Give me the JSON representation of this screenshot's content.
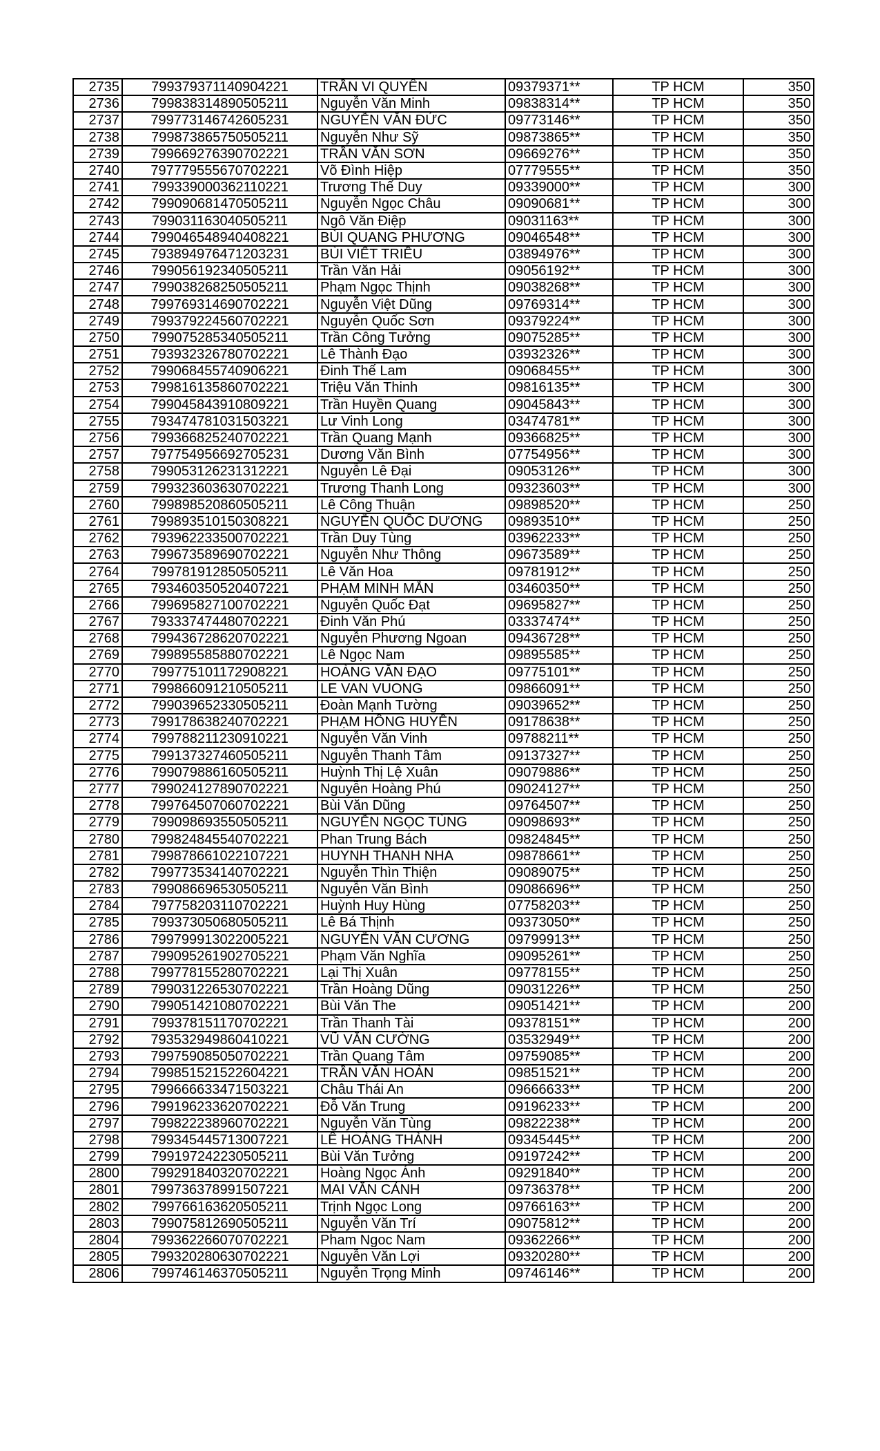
{
  "rows": [
    [
      "2735",
      "799379371140904221",
      "TRẦN VI QUYÊN",
      "09379371**",
      "TP HCM",
      "350"
    ],
    [
      "2736",
      "799838314890505211",
      "Nguyễn Văn Minh",
      "09838314**",
      "TP HCM",
      "350"
    ],
    [
      "2737",
      "799773146742605231",
      "NGUYỄN VĂN ĐỨC",
      "09773146**",
      "TP HCM",
      "350"
    ],
    [
      "2738",
      "799873865750505211",
      "Nguyễn Như Sỹ",
      "09873865**",
      "TP HCM",
      "350"
    ],
    [
      "2739",
      "799669276390702221",
      "TRẦN VĂN SƠN",
      "09669276**",
      "TP HCM",
      "350"
    ],
    [
      "2740",
      "797779555670702221",
      "Võ Đình Hiệp",
      "07779555**",
      "TP HCM",
      "350"
    ],
    [
      "2741",
      "799339000362110221",
      "Trương Thế Duy",
      "09339000**",
      "TP HCM",
      "300"
    ],
    [
      "2742",
      "799090681470505211",
      "Nguyễn Ngọc Châu",
      "09090681**",
      "TP HCM",
      "300"
    ],
    [
      "2743",
      "799031163040505211",
      "Ngô Văn Điệp",
      "09031163**",
      "TP HCM",
      "300"
    ],
    [
      "2744",
      "799046548940408221",
      "BÙI QUANG PHƯƠNG",
      "09046548**",
      "TP HCM",
      "300"
    ],
    [
      "2745",
      "793894976471203231",
      "BÙI VIẾT TRIỀU",
      "03894976**",
      "TP HCM",
      "300"
    ],
    [
      "2746",
      "799056192340505211",
      "Trần Văn Hải",
      "09056192**",
      "TP HCM",
      "300"
    ],
    [
      "2747",
      "799038268250505211",
      "Phạm Ngọc Thịnh",
      "09038268**",
      "TP HCM",
      "300"
    ],
    [
      "2748",
      "799769314690702221",
      "Nguyễn Việt Dũng",
      "09769314**",
      "TP HCM",
      "300"
    ],
    [
      "2749",
      "799379224560702221",
      "Nguyễn Quốc Sơn",
      "09379224**",
      "TP HCM",
      "300"
    ],
    [
      "2750",
      "799075285340505211",
      "Trần Công Tưởng",
      "09075285**",
      "TP HCM",
      "300"
    ],
    [
      "2751",
      "793932326780702221",
      "Lê Thành Đạo",
      "03932326**",
      "TP HCM",
      "300"
    ],
    [
      "2752",
      "799068455740906221",
      "Đinh Thế Lam",
      "09068455**",
      "TP HCM",
      "300"
    ],
    [
      "2753",
      "799816135860702221",
      "Triệu Văn Thinh",
      "09816135**",
      "TP HCM",
      "300"
    ],
    [
      "2754",
      "799045843910809221",
      "Trần Huyền Quang",
      "09045843**",
      "TP HCM",
      "300"
    ],
    [
      "2755",
      "793474781031503221",
      "Lư Vinh Long",
      "03474781**",
      "TP HCM",
      "300"
    ],
    [
      "2756",
      "799366825240702221",
      "Trần Quang Mạnh",
      "09366825**",
      "TP HCM",
      "300"
    ],
    [
      "2757",
      "797754956692705231",
      "Dương Văn Bình",
      "07754956**",
      "TP HCM",
      "300"
    ],
    [
      "2758",
      "799053126231312221",
      "Nguyễn Lê Đại",
      "09053126**",
      "TP HCM",
      "300"
    ],
    [
      "2759",
      "799323603630702221",
      "Trương Thanh Long",
      "09323603**",
      "TP HCM",
      "300"
    ],
    [
      "2760",
      "799898520860505211",
      "Lê Công Thuận",
      "09898520**",
      "TP HCM",
      "250"
    ],
    [
      "2761",
      "799893510150308221",
      "NGUYỄN QUỐC DƯƠNG",
      "09893510**",
      "TP HCM",
      "250"
    ],
    [
      "2762",
      "793962233500702221",
      "Trần Duy Tùng",
      "03962233**",
      "TP HCM",
      "250"
    ],
    [
      "2763",
      "799673589690702221",
      "Nguyễn Như Thông",
      "09673589**",
      "TP HCM",
      "250"
    ],
    [
      "2764",
      "799781912850505211",
      "Lê Văn Hoa",
      "09781912**",
      "TP HCM",
      "250"
    ],
    [
      "2765",
      "793460350520407221",
      "PHẠM MINH MẪN",
      "03460350**",
      "TP HCM",
      "250"
    ],
    [
      "2766",
      "799695827100702221",
      "Nguyễn Quốc Đạt",
      "09695827**",
      "TP HCM",
      "250"
    ],
    [
      "2767",
      "793337474480702221",
      "Đinh Văn Phú",
      "03337474**",
      "TP HCM",
      "250"
    ],
    [
      "2768",
      "799436728620702221",
      "Nguyễn Phương Ngoan",
      "09436728**",
      "TP HCM",
      "250"
    ],
    [
      "2769",
      "799895585880702221",
      "Lê Ngọc Nam",
      "09895585**",
      "TP HCM",
      "250"
    ],
    [
      "2770",
      "799775101172908221",
      "HOÀNG VĂN ĐẠO",
      "09775101**",
      "TP HCM",
      "250"
    ],
    [
      "2771",
      "799866091210505211",
      "LE VAN VUONG",
      "09866091**",
      "TP HCM",
      "250"
    ],
    [
      "2772",
      "799039652330505211",
      "Đoàn Mạnh Tường",
      "09039652**",
      "TP HCM",
      "250"
    ],
    [
      "2773",
      "799178638240702221",
      "PHẠM HỒNG HUYỀN",
      "09178638**",
      "TP HCM",
      "250"
    ],
    [
      "2774",
      "799788211230910221",
      "Nguyễn Văn Vinh",
      "09788211**",
      "TP HCM",
      "250"
    ],
    [
      "2775",
      "799137327460505211",
      "Nguyễn Thanh Tâm",
      "09137327**",
      "TP HCM",
      "250"
    ],
    [
      "2776",
      "799079886160505211",
      "Huỳnh Thị Lệ Xuân",
      "09079886**",
      "TP HCM",
      "250"
    ],
    [
      "2777",
      "799024127890702221",
      "Nguyễn Hoàng Phú",
      "09024127**",
      "TP HCM",
      "250"
    ],
    [
      "2778",
      "799764507060702221",
      "Bùi Văn Dũng",
      "09764507**",
      "TP HCM",
      "250"
    ],
    [
      "2779",
      "799098693550505211",
      "NGUYỄN NGỌC TÙNG",
      "09098693**",
      "TP HCM",
      "250"
    ],
    [
      "2780",
      "799824845540702221",
      "Phan Trung Bách",
      "09824845**",
      "TP HCM",
      "250"
    ],
    [
      "2781",
      "799878661022107221",
      "HUYNH THANH NHA",
      "09878661**",
      "TP HCM",
      "250"
    ],
    [
      "2782",
      "799773534140702221",
      "Nguyễn Thìn Thiện",
      "09089075**",
      "TP HCM",
      "250"
    ],
    [
      "2783",
      "799086696530505211",
      "Nguyễn Văn Bình",
      "09086696**",
      "TP HCM",
      "250"
    ],
    [
      "2784",
      "797758203110702221",
      "Huỳnh Huy Hùng",
      "07758203**",
      "TP HCM",
      "250"
    ],
    [
      "2785",
      "799373050680505211",
      "Lê Bá Thịnh",
      "09373050**",
      "TP HCM",
      "250"
    ],
    [
      "2786",
      "799799913022005221",
      "NGUYỄN VĂN CƯƠNG",
      "09799913**",
      "TP HCM",
      "250"
    ],
    [
      "2787",
      "799095261902705221",
      "Phạm Văn Nghĩa",
      "09095261**",
      "TP HCM",
      "250"
    ],
    [
      "2788",
      "799778155280702221",
      "Lại Thị Xuân",
      "09778155**",
      "TP HCM",
      "250"
    ],
    [
      "2789",
      "799031226530702221",
      "Trần Hoàng Dũng",
      "09031226**",
      "TP HCM",
      "250"
    ],
    [
      "2790",
      "799051421080702221",
      "Bùi Văn The",
      "09051421**",
      "TP HCM",
      "200"
    ],
    [
      "2791",
      "799378151170702221",
      "Trần Thanh Tài",
      "09378151**",
      "TP HCM",
      "200"
    ],
    [
      "2792",
      "793532949860410221",
      "VŨ VĂN CƯỜNG",
      "03532949**",
      "TP HCM",
      "200"
    ],
    [
      "2793",
      "799759085050702221",
      "Trần Quang Tâm",
      "09759085**",
      "TP HCM",
      "200"
    ],
    [
      "2794",
      "799851521522604221",
      "TRẦN VĂN HOÀN",
      "09851521**",
      "TP HCM",
      "200"
    ],
    [
      "2795",
      "799666633471503221",
      "Châu Thái An",
      "09666633**",
      "TP HCM",
      "200"
    ],
    [
      "2796",
      "799196233620702221",
      "Đỗ Văn Trung",
      "09196233**",
      "TP HCM",
      "200"
    ],
    [
      "2797",
      "799822238960702221",
      "Nguyễn Văn Tùng",
      "09822238**",
      "TP HCM",
      "200"
    ],
    [
      "2798",
      "799345445713007221",
      "LÊ HOÀNG THÀNH",
      "09345445**",
      "TP HCM",
      "200"
    ],
    [
      "2799",
      "799197242230505211",
      "Bùi Văn Tưởng",
      "09197242**",
      "TP HCM",
      "200"
    ],
    [
      "2800",
      "799291840320702221",
      "Hoàng Ngọc Ánh",
      "09291840**",
      "TP HCM",
      "200"
    ],
    [
      "2801",
      "799736378991507221",
      "MAI VĂN CẢNH",
      "09736378**",
      "TP HCM",
      "200"
    ],
    [
      "2802",
      "799766163620505211",
      "Trịnh Ngọc Long",
      "09766163**",
      "TP HCM",
      "200"
    ],
    [
      "2803",
      "799075812690505211",
      "Nguyễn Văn Trí",
      "09075812**",
      "TP HCM",
      "200"
    ],
    [
      "2804",
      "799362266070702221",
      "Pham Ngoc Nam",
      "09362266**",
      "TP HCM",
      "200"
    ],
    [
      "2805",
      "799320280630702221",
      "Nguyễn Văn Lợi",
      "09320280**",
      "TP HCM",
      "200"
    ],
    [
      "2806",
      "799746146370505211",
      "Nguyễn Trọng  Minh",
      "09746146**",
      "TP HCM",
      "200"
    ]
  ]
}
